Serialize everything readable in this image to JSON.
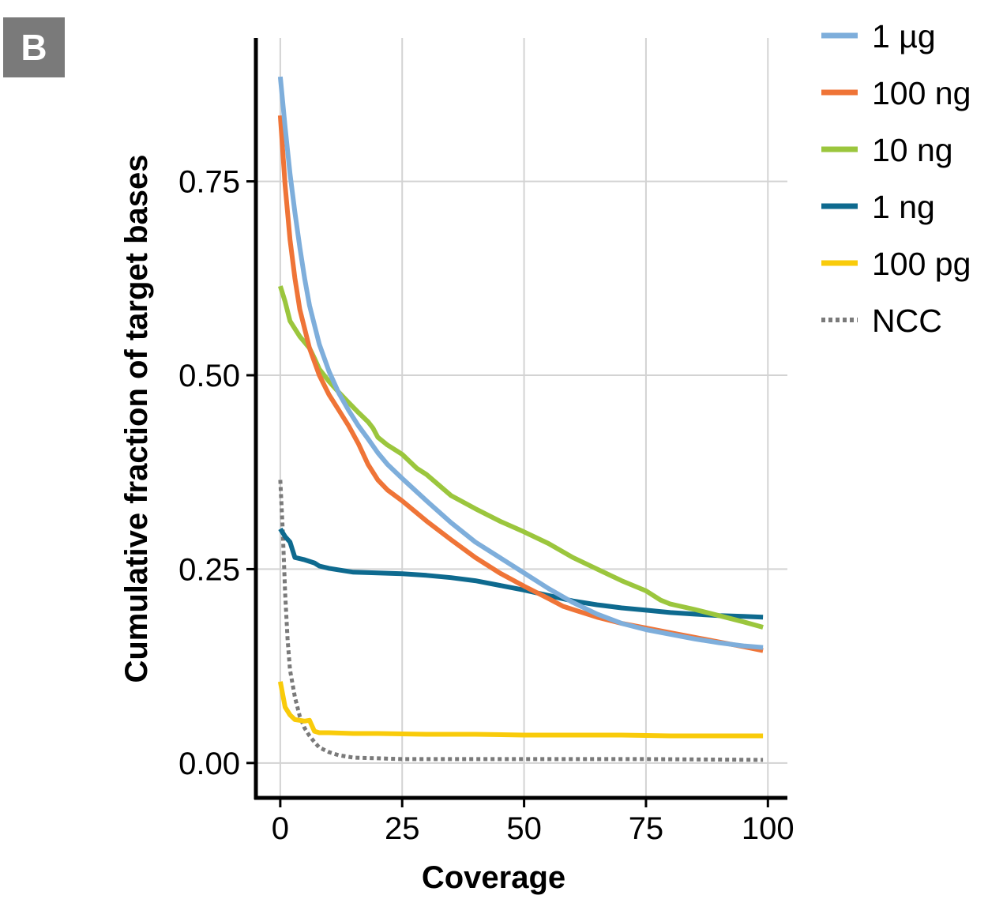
{
  "panel_label": "B",
  "chart_data": {
    "type": "line",
    "xlabel": "Coverage",
    "ylabel": "Cumulative fraction of target bases",
    "xlim": [
      -5,
      104
    ],
    "ylim": [
      -0.045,
      0.935
    ],
    "x_ticks": [
      0,
      25,
      50,
      75,
      100
    ],
    "x_tick_labels": [
      "0",
      "25",
      "50",
      "75",
      "100"
    ],
    "y_ticks": [
      0,
      0.25,
      0.5,
      0.75
    ],
    "y_tick_labels": [
      "0.00",
      "0.25",
      "0.50",
      "0.75"
    ],
    "grid": true,
    "legend_position": "right",
    "series": [
      {
        "name": "1 µg",
        "color": "#7eaedb",
        "dash": false,
        "x": [
          0,
          1,
          2,
          3,
          4,
          5,
          6,
          8,
          10,
          12,
          14,
          16,
          18,
          20,
          22,
          25,
          30,
          35,
          40,
          45,
          50,
          55,
          60,
          65,
          70,
          75,
          80,
          85,
          90,
          95,
          99
        ],
        "y": [
          0.885,
          0.82,
          0.76,
          0.71,
          0.665,
          0.625,
          0.59,
          0.54,
          0.505,
          0.477,
          0.455,
          0.435,
          0.418,
          0.4,
          0.385,
          0.367,
          0.338,
          0.31,
          0.285,
          0.265,
          0.245,
          0.225,
          0.207,
          0.192,
          0.18,
          0.172,
          0.166,
          0.16,
          0.155,
          0.151,
          0.149
        ]
      },
      {
        "name": "100 ng",
        "color": "#ef7437",
        "dash": false,
        "x": [
          0,
          1,
          2,
          3,
          4,
          6,
          8,
          10,
          12,
          14,
          16,
          18,
          20,
          22,
          25,
          30,
          35,
          40,
          45,
          50,
          55,
          58,
          60,
          65,
          70,
          75,
          80,
          85,
          90,
          95,
          99
        ],
        "y": [
          0.835,
          0.745,
          0.675,
          0.625,
          0.585,
          0.535,
          0.5,
          0.475,
          0.455,
          0.435,
          0.412,
          0.385,
          0.365,
          0.352,
          0.338,
          0.312,
          0.288,
          0.265,
          0.245,
          0.228,
          0.212,
          0.202,
          0.198,
          0.188,
          0.18,
          0.174,
          0.168,
          0.162,
          0.156,
          0.15,
          0.145
        ]
      },
      {
        "name": "10 ng",
        "color": "#9bc63d",
        "dash": false,
        "x": [
          0,
          1,
          2,
          3,
          4,
          6,
          7,
          8,
          10,
          12,
          14,
          16,
          18,
          19,
          20,
          22,
          25,
          28,
          30,
          35,
          40,
          45,
          50,
          55,
          60,
          65,
          70,
          75,
          78,
          80,
          85,
          90,
          95,
          99
        ],
        "y": [
          0.615,
          0.595,
          0.57,
          0.56,
          0.55,
          0.535,
          0.522,
          0.508,
          0.492,
          0.478,
          0.465,
          0.452,
          0.44,
          0.432,
          0.42,
          0.41,
          0.398,
          0.38,
          0.372,
          0.345,
          0.328,
          0.312,
          0.298,
          0.283,
          0.265,
          0.25,
          0.235,
          0.222,
          0.21,
          0.205,
          0.198,
          0.19,
          0.182,
          0.175
        ]
      },
      {
        "name": "1 ng",
        "color": "#0e6a8f",
        "dash": false,
        "x": [
          0,
          1,
          2,
          3,
          5,
          7,
          8,
          10,
          12,
          15,
          20,
          25,
          30,
          35,
          40,
          45,
          50,
          55,
          60,
          65,
          70,
          75,
          80,
          85,
          90,
          95,
          99
        ],
        "y": [
          0.302,
          0.292,
          0.285,
          0.265,
          0.262,
          0.258,
          0.254,
          0.251,
          0.249,
          0.246,
          0.245,
          0.244,
          0.242,
          0.239,
          0.235,
          0.229,
          0.223,
          0.216,
          0.209,
          0.204,
          0.2,
          0.197,
          0.194,
          0.192,
          0.19,
          0.189,
          0.188
        ]
      },
      {
        "name": "100 pg",
        "color": "#f9cb0a",
        "dash": false,
        "x": [
          0,
          1,
          2,
          3,
          5,
          6,
          7,
          8,
          10,
          15,
          20,
          30,
          40,
          50,
          60,
          70,
          80,
          90,
          99
        ],
        "y": [
          0.105,
          0.072,
          0.062,
          0.056,
          0.054,
          0.055,
          0.041,
          0.039,
          0.039,
          0.038,
          0.038,
          0.037,
          0.037,
          0.036,
          0.036,
          0.036,
          0.035,
          0.035,
          0.035
        ]
      },
      {
        "name": "NCC",
        "color": "#7a7a7a",
        "dash": true,
        "x": [
          0,
          0.5,
          1,
          1.5,
          2,
          3,
          4,
          5,
          6,
          7,
          8,
          10,
          12,
          15,
          20,
          25,
          30,
          50,
          75,
          99
        ],
        "y": [
          0.365,
          0.3,
          0.22,
          0.16,
          0.12,
          0.085,
          0.06,
          0.045,
          0.035,
          0.027,
          0.02,
          0.014,
          0.01,
          0.007,
          0.006,
          0.005,
          0.005,
          0.005,
          0.005,
          0.004
        ]
      }
    ]
  }
}
